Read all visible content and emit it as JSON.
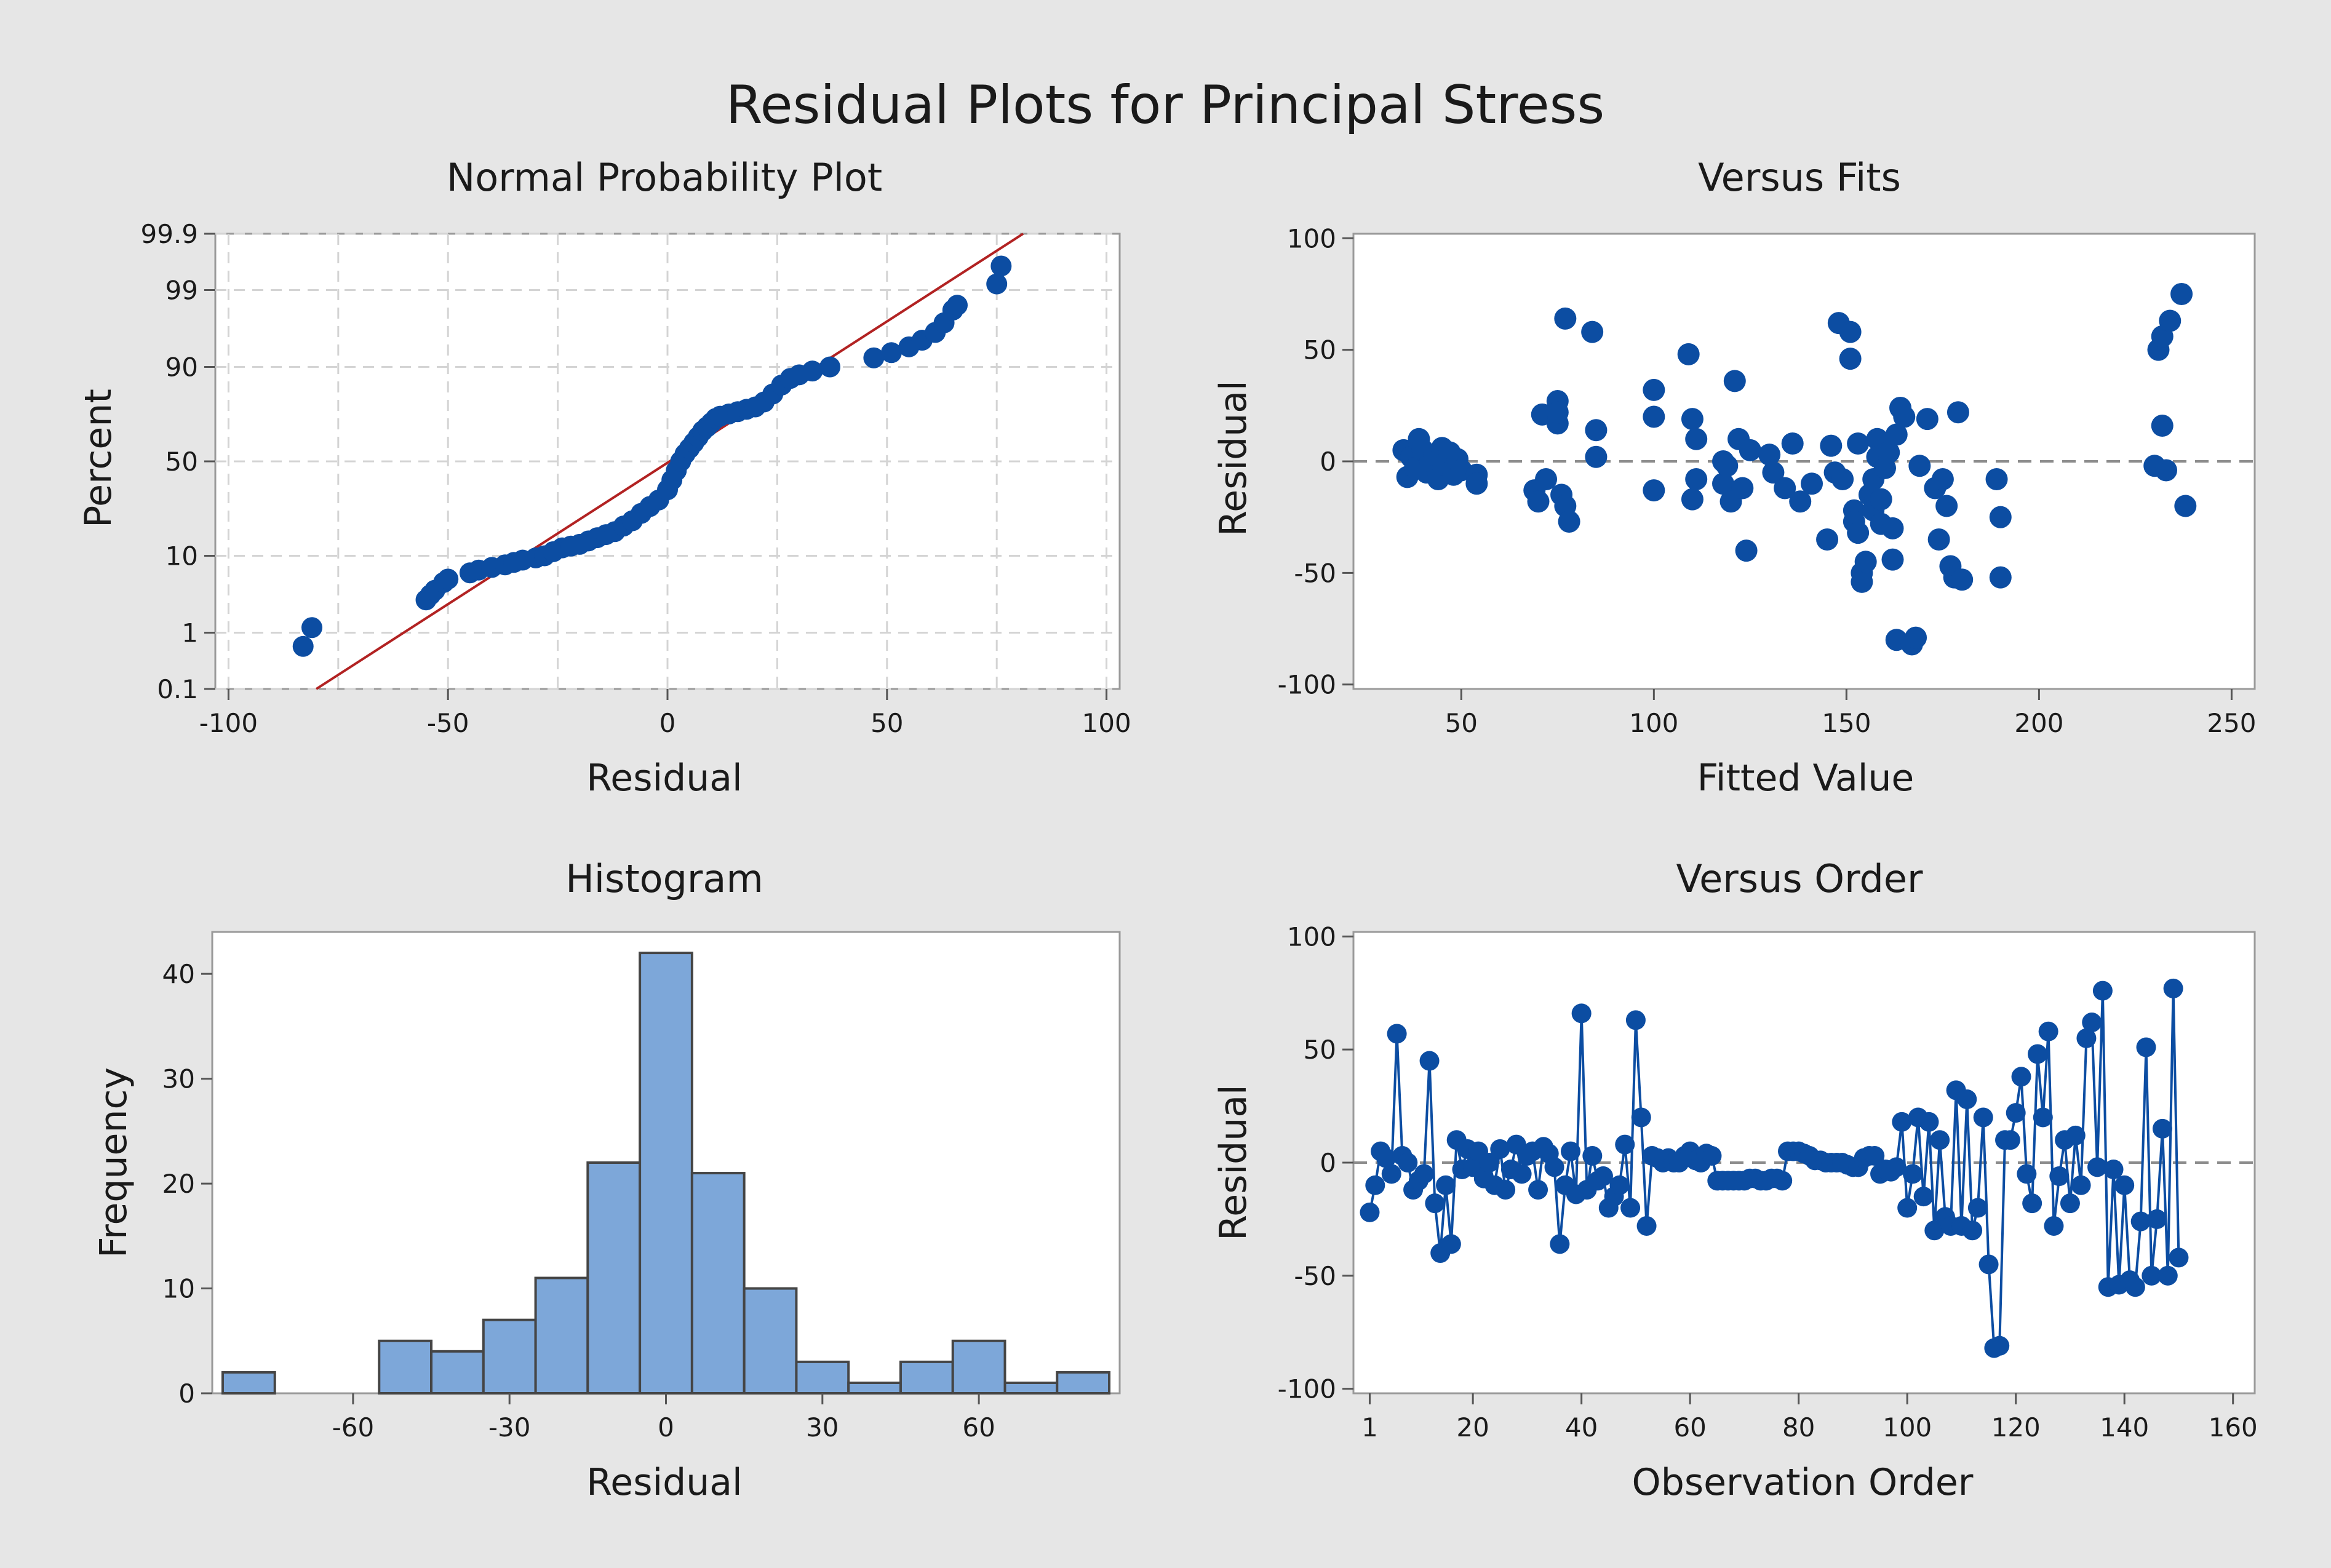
{
  "figure": {
    "title": "Residual Plots for Principal Stress"
  },
  "colors": {
    "background": "#e6e6e6",
    "plot_bg": "#ffffff",
    "point": "#0c4da2",
    "fit_line": "#b22222",
    "bar_fill": "#7da7d9",
    "bar_edge": "#454545",
    "grid": "#d4d4d4",
    "ref_line": "#8c8c8c"
  },
  "chart_data": [
    {
      "id": "npp",
      "type": "scatter",
      "title": "Normal Probability Plot",
      "xlabel": "Residual",
      "ylabel": "Percent",
      "xlim": [
        -100,
        100
      ],
      "xticks": [
        -100,
        -50,
        0,
        50,
        100
      ],
      "yticks": [
        0.1,
        1,
        10,
        50,
        90,
        99,
        99.9
      ],
      "grid": true,
      "fit_line": [
        [
          -80,
          0.1
        ],
        [
          81,
          99.9
        ]
      ],
      "points": [
        [
          -83,
          0.6
        ],
        [
          -81,
          1.2
        ],
        [
          -55,
          3
        ],
        [
          -54,
          3.5
        ],
        [
          -53,
          4
        ],
        [
          -51,
          5
        ],
        [
          -50,
          5.5
        ],
        [
          -45,
          6.5
        ],
        [
          -43,
          7
        ],
        [
          -40,
          7.5
        ],
        [
          -37,
          8
        ],
        [
          -35,
          8.5
        ],
        [
          -33,
          9
        ],
        [
          -30,
          9.5
        ],
        [
          -28,
          10
        ],
        [
          -26,
          11
        ],
        [
          -24,
          12
        ],
        [
          -22,
          12.5
        ],
        [
          -20,
          13
        ],
        [
          -18,
          14
        ],
        [
          -16,
          15
        ],
        [
          -14,
          16
        ],
        [
          -12,
          17
        ],
        [
          -10,
          19
        ],
        [
          -8,
          21
        ],
        [
          -6,
          24
        ],
        [
          -4,
          27
        ],
        [
          -2,
          30
        ],
        [
          0,
          35
        ],
        [
          1,
          40
        ],
        [
          2,
          45
        ],
        [
          3,
          50
        ],
        [
          4,
          54
        ],
        [
          5,
          57
        ],
        [
          6,
          60
        ],
        [
          7,
          63
        ],
        [
          8,
          66
        ],
        [
          9,
          68
        ],
        [
          10,
          70
        ],
        [
          11,
          72
        ],
        [
          12,
          73
        ],
        [
          14,
          74
        ],
        [
          16,
          75
        ],
        [
          18,
          76
        ],
        [
          20,
          77
        ],
        [
          22,
          79
        ],
        [
          24,
          82
        ],
        [
          26,
          85
        ],
        [
          28,
          87
        ],
        [
          30,
          88
        ],
        [
          33,
          89
        ],
        [
          37,
          90
        ],
        [
          47,
          92
        ],
        [
          51,
          93
        ],
        [
          55,
          94
        ],
        [
          58,
          95
        ],
        [
          61,
          96
        ],
        [
          63,
          97
        ],
        [
          65,
          98
        ],
        [
          66,
          98.3
        ],
        [
          75,
          99.2
        ],
        [
          76,
          99.6
        ]
      ]
    },
    {
      "id": "fits",
      "type": "scatter",
      "title": "Versus Fits",
      "xlabel": "Fitted Value",
      "ylabel": "Residual",
      "xlim": [
        22,
        256
      ],
      "ylim": [
        -100,
        100
      ],
      "xticks": [
        50,
        100,
        150,
        200,
        250
      ],
      "yticks": [
        -100,
        -50,
        0,
        50,
        100
      ],
      "ref_line": 0,
      "points": [
        [
          35,
          5
        ],
        [
          36,
          -7
        ],
        [
          37,
          2
        ],
        [
          38,
          -3
        ],
        [
          39,
          10
        ],
        [
          40,
          5
        ],
        [
          41,
          -5
        ],
        [
          42,
          0
        ],
        [
          43,
          3
        ],
        [
          44,
          -8
        ],
        [
          45,
          6
        ],
        [
          46,
          -2
        ],
        [
          47,
          4
        ],
        [
          48,
          -6
        ],
        [
          49,
          1
        ],
        [
          50,
          -4
        ],
        [
          54,
          -6
        ],
        [
          54,
          -10
        ],
        [
          69,
          -13
        ],
        [
          70,
          -18
        ],
        [
          71,
          21
        ],
        [
          72,
          -8
        ],
        [
          75,
          27
        ],
        [
          75,
          17
        ],
        [
          75,
          22
        ],
        [
          76,
          -15
        ],
        [
          77,
          -20
        ],
        [
          77,
          64
        ],
        [
          78,
          -27
        ],
        [
          84,
          58
        ],
        [
          85,
          14
        ],
        [
          85,
          2
        ],
        [
          100,
          32
        ],
        [
          100,
          20
        ],
        [
          100,
          -13
        ],
        [
          109,
          48
        ],
        [
          110,
          19
        ],
        [
          110,
          -17
        ],
        [
          111,
          10
        ],
        [
          111,
          -8
        ],
        [
          118,
          0
        ],
        [
          118,
          -10
        ],
        [
          119,
          -2
        ],
        [
          120,
          -18
        ],
        [
          121,
          36
        ],
        [
          122,
          10
        ],
        [
          123,
          -12
        ],
        [
          124,
          -40
        ],
        [
          125,
          5
        ],
        [
          130,
          3
        ],
        [
          131,
          -5
        ],
        [
          134,
          -12
        ],
        [
          136,
          8
        ],
        [
          138,
          -18
        ],
        [
          141,
          -10
        ],
        [
          145,
          -35
        ],
        [
          146,
          7
        ],
        [
          147,
          -5
        ],
        [
          148,
          62
        ],
        [
          149,
          -8
        ],
        [
          151,
          58
        ],
        [
          151,
          46
        ],
        [
          152,
          -22
        ],
        [
          152,
          -27
        ],
        [
          153,
          8
        ],
        [
          153,
          -32
        ],
        [
          154,
          -50
        ],
        [
          154,
          -54
        ],
        [
          155,
          -45
        ],
        [
          156,
          -15
        ],
        [
          157,
          -8
        ],
        [
          157,
          -22
        ],
        [
          158,
          10
        ],
        [
          158,
          2
        ],
        [
          159,
          -17
        ],
        [
          159,
          -28
        ],
        [
          160,
          -3
        ],
        [
          161,
          4
        ],
        [
          162,
          -30
        ],
        [
          162,
          -44
        ],
        [
          163,
          -80
        ],
        [
          163,
          12
        ],
        [
          164,
          24
        ],
        [
          165,
          20
        ],
        [
          167,
          -82
        ],
        [
          168,
          -79
        ],
        [
          169,
          -2
        ],
        [
          171,
          19
        ],
        [
          173,
          -12
        ],
        [
          174,
          -35
        ],
        [
          175,
          -8
        ],
        [
          176,
          -20
        ],
        [
          177,
          -47
        ],
        [
          178,
          -52
        ],
        [
          179,
          22
        ],
        [
          180,
          -53
        ],
        [
          189,
          -8
        ],
        [
          190,
          -25
        ],
        [
          190,
          -52
        ],
        [
          230,
          -2
        ],
        [
          231,
          50
        ],
        [
          232,
          56
        ],
        [
          232,
          16
        ],
        [
          233,
          -4
        ],
        [
          234,
          63
        ],
        [
          237,
          75
        ],
        [
          238,
          -20
        ]
      ]
    },
    {
      "id": "hist",
      "type": "bar",
      "title": "Histogram",
      "xlabel": "Residual",
      "ylabel": "Frequency",
      "xlim": [
        -87,
        87
      ],
      "ylim": [
        0,
        44
      ],
      "xticks": [
        -60,
        -30,
        0,
        30,
        60
      ],
      "yticks": [
        0,
        10,
        20,
        30,
        40
      ],
      "bin_width": 10,
      "bins": [
        {
          "center": -80,
          "count": 2
        },
        {
          "center": -70,
          "count": 0
        },
        {
          "center": -60,
          "count": 0
        },
        {
          "center": -50,
          "count": 5
        },
        {
          "center": -40,
          "count": 4
        },
        {
          "center": -30,
          "count": 7
        },
        {
          "center": -20,
          "count": 11
        },
        {
          "center": -10,
          "count": 22
        },
        {
          "center": 0,
          "count": 42
        },
        {
          "center": 10,
          "count": 21
        },
        {
          "center": 20,
          "count": 10
        },
        {
          "center": 30,
          "count": 3
        },
        {
          "center": 40,
          "count": 1
        },
        {
          "center": 50,
          "count": 3
        },
        {
          "center": 60,
          "count": 5
        },
        {
          "center": 70,
          "count": 1
        },
        {
          "center": 80,
          "count": 2
        }
      ]
    },
    {
      "id": "order",
      "type": "line",
      "title": "Versus Order",
      "xlabel": "Observation Order",
      "ylabel": "Residual",
      "xlim": [
        -2,
        164
      ],
      "ylim": [
        -100,
        100
      ],
      "xticks": [
        1,
        20,
        40,
        60,
        80,
        100,
        120,
        140,
        160
      ],
      "yticks": [
        -100,
        -50,
        0,
        50,
        100
      ],
      "ref_line": 0,
      "values": [
        -22,
        -10,
        5,
        2,
        -5,
        57,
        3,
        0,
        -12,
        -8,
        -5,
        45,
        -18,
        -40,
        -10,
        -36,
        10,
        -3,
        6,
        -2,
        5,
        -7,
        0,
        -10,
        6,
        -12,
        -3,
        8,
        -5,
        3,
        5,
        -12,
        7,
        4,
        -2,
        -36,
        -10,
        5,
        -14,
        66,
        -12,
        3,
        -8,
        -6,
        -20,
        -15,
        -10,
        8,
        -20,
        63,
        20,
        -28,
        3,
        2,
        0,
        2,
        0,
        0,
        3,
        5,
        1,
        0,
        4,
        3,
        -8,
        -8,
        -8,
        -8,
        -8,
        -8,
        -7,
        -7,
        -8,
        -8,
        -7,
        -7,
        -8,
        5,
        5,
        5,
        4,
        3,
        1,
        1,
        0,
        0,
        0,
        0,
        -1,
        -2,
        -2,
        2,
        3,
        3,
        -5,
        -3,
        -4,
        -2,
        18,
        -20,
        -5,
        20,
        -15,
        18,
        -30,
        10,
        -24,
        -28,
        32,
        -28,
        28,
        -30,
        -20,
        20,
        -45,
        -82,
        -81,
        10,
        10,
        22,
        38,
        -5,
        -18,
        48,
        20,
        58,
        -28,
        -6,
        10,
        -18,
        12,
        -10,
        55,
        62,
        -2,
        76,
        -55,
        -3,
        -54,
        -10,
        -52,
        -55,
        -26,
        51,
        -50,
        -25,
        15,
        -50,
        77,
        -42
      ]
    }
  ]
}
